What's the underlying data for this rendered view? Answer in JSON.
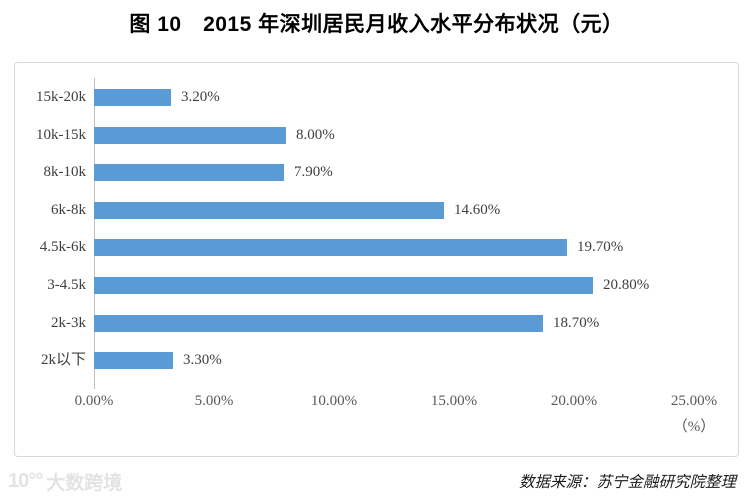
{
  "title": "图 10　2015 年深圳居民月收入水平分布状况（元）",
  "chart_data": {
    "type": "bar",
    "orientation": "horizontal",
    "categories": [
      "15k-20k",
      "10k-15k",
      "8k-10k",
      "6k-8k",
      "4.5k-6k",
      "3-4.5k",
      "2k-3k",
      "2k以下"
    ],
    "values": [
      3.2,
      8.0,
      7.9,
      14.6,
      19.7,
      20.8,
      18.7,
      3.3
    ],
    "value_labels": [
      "3.20%",
      "8.00%",
      "7.90%",
      "14.60%",
      "19.70%",
      "20.80%",
      "18.70%",
      "3.30%"
    ],
    "x_ticks": [
      "0.00%",
      "5.00%",
      "10.00%",
      "15.00%",
      "20.00%",
      "25.00%"
    ],
    "x_tick_values": [
      0,
      5,
      10,
      15,
      20,
      25
    ],
    "xlim": [
      0,
      25
    ],
    "xlabel": "（%）",
    "grid": false,
    "legend": false,
    "bar_color": "#5b9bd5",
    "axis_color": "#bfbfbf",
    "border_color": "#d9d9d9"
  },
  "source": "数据来源：苏宁金融研究院整理",
  "watermark": {
    "logo": "10°°",
    "text": "大数跨境"
  }
}
